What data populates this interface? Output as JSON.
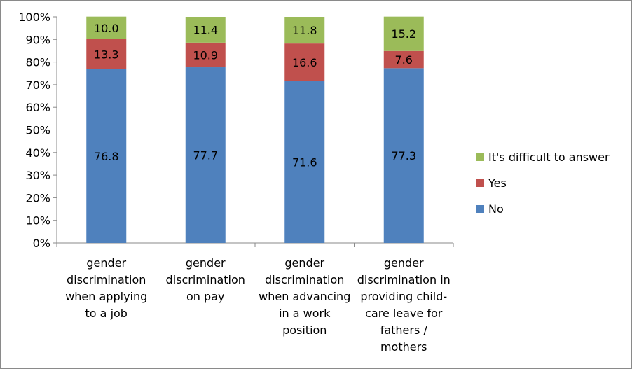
{
  "chart_data": {
    "type": "bar",
    "stacked": true,
    "percent_stacked": true,
    "title": "",
    "xlabel": "",
    "ylabel": "",
    "ylim": [
      0,
      100
    ],
    "yticks": [
      "0%",
      "10%",
      "20%",
      "30%",
      "40%",
      "50%",
      "60%",
      "70%",
      "80%",
      "90%",
      "100%"
    ],
    "grid": false,
    "legend_position": "right",
    "categories": [
      [
        "gender",
        "discrimination",
        "when applying",
        "to a job"
      ],
      [
        "gender",
        "discrimination",
        "on pay"
      ],
      [
        "gender",
        "discrimination",
        "when advancing",
        "in a work",
        "position"
      ],
      [
        "gender",
        "discrimination in",
        "providing child-",
        "care leave for",
        "fathers /",
        "mothers"
      ]
    ],
    "series": [
      {
        "name": "No",
        "color": "#4f81bd",
        "values": [
          76.8,
          77.7,
          71.6,
          77.3
        ],
        "labels": [
          "76.8",
          "77.7",
          "71.6",
          "77.3"
        ]
      },
      {
        "name": "Yes",
        "color": "#c0504d",
        "values": [
          13.3,
          10.9,
          16.6,
          7.6
        ],
        "labels": [
          "13.3",
          "10.9",
          "16.6",
          "7.6"
        ]
      },
      {
        "name": "It's difficult to answer",
        "color": "#9bbb59",
        "values": [
          10.0,
          11.4,
          11.8,
          15.2
        ],
        "labels": [
          "10.0",
          "11.4",
          "11.8",
          "15.2"
        ]
      }
    ],
    "legend_order": [
      "It's difficult to answer",
      "Yes",
      "No"
    ]
  }
}
